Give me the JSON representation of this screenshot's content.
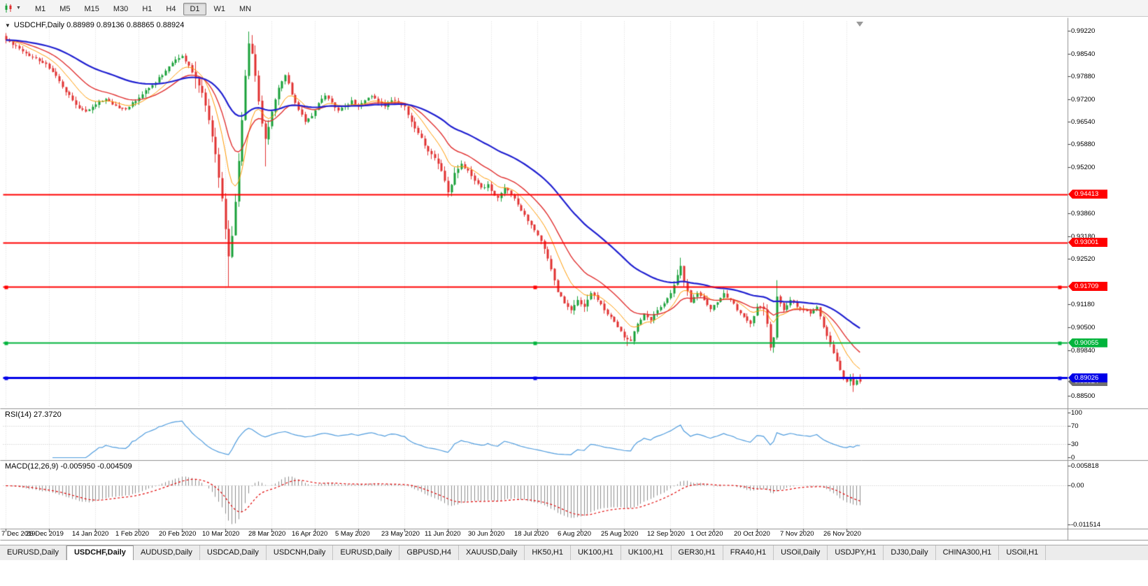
{
  "toolbar": {
    "timeframes": [
      "M1",
      "M5",
      "M15",
      "M30",
      "H1",
      "H4",
      "D1",
      "W1",
      "MN"
    ],
    "active_timeframe": "D1"
  },
  "chart": {
    "symbol": "USDCHF",
    "period": "Daily",
    "title": "USDCHF,Daily 0.88989 0.89136 0.88865 0.88924"
  },
  "indicators": {
    "rsi_label": "RSI(14) 27.3720",
    "macd_label": "MACD(12,26,9) -0.005950 -0.004509"
  },
  "icons": {
    "title_caret": "▼",
    "toolbar_caret": "▼"
  },
  "colors": {
    "up": "#18A038",
    "down": "#E03030",
    "ema_fast": "#FF9900",
    "ema_mid": "#E03030",
    "ema_slow": "#1F1FD0",
    "rsi": "#4E9BDD",
    "macd_hist": "#8C8C8C",
    "macd_signal": "#E00000",
    "grid": "#D8D8D8",
    "separator": "#909090"
  },
  "chart_data": [
    {
      "type": "candlestick",
      "title": "USDCHF,Daily",
      "ohlc_last": {
        "open": 0.88989,
        "high": 0.89136,
        "low": 0.88865,
        "close": 0.88924
      },
      "candle_count": 258,
      "y_range": [
        0.8825,
        0.995
      ],
      "y_ticks": [
        0.9922,
        0.9854,
        0.9788,
        0.972,
        0.9654,
        0.9588,
        0.952,
        0.9386,
        0.9318,
        0.9252,
        0.9118,
        0.905,
        0.8984,
        0.885
      ],
      "x_ticks": [
        {
          "i": 0,
          "label": "7 Dec 2019"
        },
        {
          "i": 13,
          "label": "26 Dec 2019"
        },
        {
          "i": 27,
          "label": "14 Jan 2020"
        },
        {
          "i": 40,
          "label": "1 Feb 2020"
        },
        {
          "i": 53,
          "label": "20 Feb 2020"
        },
        {
          "i": 66,
          "label": "10 Mar 2020"
        },
        {
          "i": 80,
          "label": "28 Mar 2020"
        },
        {
          "i": 93,
          "label": "16 Apr 2020"
        },
        {
          "i": 106,
          "label": "5 May 2020"
        },
        {
          "i": 120,
          "label": "23 May 2020"
        },
        {
          "i": 133,
          "label": "11 Jun 2020"
        },
        {
          "i": 146,
          "label": "30 Jun 2020"
        },
        {
          "i": 160,
          "label": "18 Jul 2020"
        },
        {
          "i": 173,
          "label": "6 Aug 2020"
        },
        {
          "i": 186,
          "label": "25 Aug 2020"
        },
        {
          "i": 200,
          "label": "12 Sep 2020"
        },
        {
          "i": 213,
          "label": "1 Oct 2020"
        },
        {
          "i": 226,
          "label": "20 Oct 2020"
        },
        {
          "i": 240,
          "label": "7 Nov 2020"
        },
        {
          "i": 253,
          "label": "26 Nov 2020"
        }
      ],
      "close_path": [
        [
          0,
          0.9895
        ],
        [
          3,
          0.9878
        ],
        [
          6,
          0.9856
        ],
        [
          9,
          0.9842
        ],
        [
          12,
          0.9825
        ],
        [
          15,
          0.979
        ],
        [
          18,
          0.9742
        ],
        [
          21,
          0.9705
        ],
        [
          24,
          0.9685
        ],
        [
          27,
          0.9706
        ],
        [
          30,
          0.9722
        ],
        [
          33,
          0.9702
        ],
        [
          36,
          0.9692
        ],
        [
          40,
          0.9726
        ],
        [
          44,
          0.9762
        ],
        [
          48,
          0.9805
        ],
        [
          51,
          0.9838
        ],
        [
          53,
          0.9848
        ],
        [
          55,
          0.982
        ],
        [
          57,
          0.9782
        ],
        [
          59,
          0.974
        ],
        [
          61,
          0.966
        ],
        [
          63,
          0.956
        ],
        [
          65,
          0.943
        ],
        [
          66,
          0.934
        ],
        [
          67,
          0.926
        ],
        [
          68,
          0.932
        ],
        [
          69,
          0.942
        ],
        [
          70,
          0.954
        ],
        [
          71,
          0.966
        ],
        [
          72,
          0.979
        ],
        [
          73,
          0.9885
        ],
        [
          74,
          0.9855
        ],
        [
          75,
          0.979
        ],
        [
          76,
          0.9715
        ],
        [
          77,
          0.965
        ],
        [
          78,
          0.9605
        ],
        [
          79,
          0.964
        ],
        [
          80,
          0.9685
        ],
        [
          82,
          0.9755
        ],
        [
          84,
          0.9792
        ],
        [
          86,
          0.9735
        ],
        [
          88,
          0.969
        ],
        [
          90,
          0.9655
        ],
        [
          92,
          0.9672
        ],
        [
          94,
          0.971
        ],
        [
          96,
          0.9732
        ],
        [
          98,
          0.9712
        ],
        [
          100,
          0.9688
        ],
        [
          102,
          0.9702
        ],
        [
          104,
          0.9718
        ],
        [
          106,
          0.97
        ],
        [
          108,
          0.9718
        ],
        [
          110,
          0.973
        ],
        [
          112,
          0.9712
        ],
        [
          114,
          0.97
        ],
        [
          116,
          0.9718
        ],
        [
          118,
          0.9712
        ],
        [
          120,
          0.97
        ],
        [
          122,
          0.9655
        ],
        [
          124,
          0.9622
        ],
        [
          126,
          0.9585
        ],
        [
          128,
          0.956
        ],
        [
          130,
          0.9532
        ],
        [
          132,
          0.9482
        ],
        [
          133,
          0.9448
        ],
        [
          134,
          0.947
        ],
        [
          135,
          0.9505
        ],
        [
          137,
          0.9532
        ],
        [
          139,
          0.9512
        ],
        [
          141,
          0.9482
        ],
        [
          143,
          0.9462
        ],
        [
          145,
          0.9472
        ],
        [
          146,
          0.9452
        ],
        [
          148,
          0.9432
        ],
        [
          150,
          0.9462
        ],
        [
          152,
          0.9442
        ],
        [
          154,
          0.9412
        ],
        [
          156,
          0.9382
        ],
        [
          158,
          0.9352
        ],
        [
          160,
          0.9322
        ],
        [
          162,
          0.9282
        ],
        [
          164,
          0.9222
        ],
        [
          166,
          0.9155
        ],
        [
          168,
          0.9122
        ],
        [
          170,
          0.9102
        ],
        [
          172,
          0.9132
        ],
        [
          174,
          0.9112
        ],
        [
          176,
          0.9152
        ],
        [
          178,
          0.9132
        ],
        [
          180,
          0.9102
        ],
        [
          182,
          0.9082
        ],
        [
          184,
          0.9052
        ],
        [
          186,
          0.9022
        ],
        [
          188,
          0.9012
        ],
        [
          190,
          0.9062
        ],
        [
          192,
          0.9092
        ],
        [
          194,
          0.9072
        ],
        [
          196,
          0.9102
        ],
        [
          198,
          0.9122
        ],
        [
          200,
          0.9152
        ],
        [
          202,
          0.9205
        ],
        [
          203,
          0.9232
        ],
        [
          204,
          0.9185
        ],
        [
          206,
          0.9125
        ],
        [
          208,
          0.9152
        ],
        [
          210,
          0.9132
        ],
        [
          212,
          0.9105
        ],
        [
          214,
          0.9125
        ],
        [
          216,
          0.9152
        ],
        [
          218,
          0.9132
        ],
        [
          220,
          0.9102
        ],
        [
          222,
          0.9082
        ],
        [
          224,
          0.9062
        ],
        [
          226,
          0.9112
        ],
        [
          228,
          0.9105
        ],
        [
          229,
          0.9062
        ],
        [
          230,
          0.8992
        ],
        [
          231,
          0.9022
        ],
        [
          232,
          0.9142
        ],
        [
          234,
          0.9102
        ],
        [
          236,
          0.9132
        ],
        [
          238,
          0.9112
        ],
        [
          240,
          0.9102
        ],
        [
          242,
          0.9092
        ],
        [
          244,
          0.9112
        ],
        [
          246,
          0.9052
        ],
        [
          248,
          0.9002
        ],
        [
          250,
          0.8952
        ],
        [
          252,
          0.8902
        ],
        [
          253,
          0.8892
        ],
        [
          254,
          0.8902
        ],
        [
          255,
          0.8882
        ],
        [
          256,
          0.8896
        ],
        [
          257,
          0.88924
        ]
      ],
      "forced_wicks": [
        [
          67,
          "low",
          0.9172
        ],
        [
          73,
          "high",
          0.992
        ],
        [
          78,
          "low",
          0.9524
        ],
        [
          133,
          "low",
          0.9436
        ],
        [
          187,
          "low",
          0.8997
        ],
        [
          203,
          "high",
          0.9256
        ],
        [
          230,
          "low",
          0.8983
        ],
        [
          232,
          "high",
          0.919
        ],
        [
          255,
          "low",
          0.8862
        ]
      ],
      "overlays": [
        {
          "name": "ema-fast",
          "period": 10,
          "color": "#FF9900",
          "width": 1
        },
        {
          "name": "ema-mid",
          "period": 20,
          "color": "#E03030",
          "width": 1.4
        },
        {
          "name": "ema-slow",
          "period": 50,
          "color": "#1F1FD0",
          "width": 2.2
        }
      ],
      "hlines": [
        {
          "price": 0.94413,
          "label": "0.94413",
          "color": "#FF0000",
          "width": 2,
          "selected": false
        },
        {
          "price": 0.93001,
          "label": "0.93001",
          "color": "#FF0000",
          "width": 2,
          "selected": false
        },
        {
          "price": 0.91709,
          "label": "0.91709",
          "color": "#FF0000",
          "width": 2,
          "selected": true
        },
        {
          "price": 0.90055,
          "label": "0.90055",
          "color": "#00B43C",
          "width": 2,
          "selected": true
        },
        {
          "price": 0.89026,
          "label": "0.89026",
          "color": "#0000E8",
          "width": 3,
          "selected": true
        }
      ],
      "up_color": "#18A038",
      "down_color": "#E03030"
    },
    {
      "type": "line",
      "name": "RSI(14)",
      "period": 14,
      "current": 27.372,
      "levels": [
        70,
        30
      ],
      "y_ticks": [
        {
          "v": 100,
          "label": "100"
        },
        {
          "v": 70,
          "label": "70"
        },
        {
          "v": 30,
          "label": "30"
        },
        {
          "v": 0,
          "label": "0"
        }
      ],
      "y_range": [
        0,
        100
      ],
      "color": "#4E9BDD"
    },
    {
      "type": "macd",
      "name": "MACD(12,26,9)",
      "fast": 12,
      "slow": 26,
      "signal_period": 9,
      "macd_current": -0.00595,
      "signal_current": -0.004509,
      "y_ticks": [
        {
          "v": 0.005818,
          "label": "0.005818"
        },
        {
          "v": 0,
          "label": "0.00"
        },
        {
          "v": -0.011514,
          "label": "-0.011514"
        }
      ],
      "y_range": [
        -0.011514,
        0.005818
      ],
      "histogram_color": "#8C8C8C",
      "signal_color": "#E00000"
    }
  ],
  "tabs": {
    "active_index": 1,
    "items": [
      "EURUSD,Daily",
      "USDCHF,Daily",
      "AUDUSD,Daily",
      "USDCAD,Daily",
      "USDCNH,Daily",
      "EURUSD,Daily",
      "GBPUSD,H4",
      "XAUUSD,Daily",
      "HK50,H1",
      "UK100,H1",
      "UK100,H1",
      "GER30,H1",
      "FRA40,H1",
      "USOil,Daily",
      "USDJPY,H1",
      "DJ30,Daily",
      "CHINA300,H1",
      "USOil,H1"
    ]
  }
}
